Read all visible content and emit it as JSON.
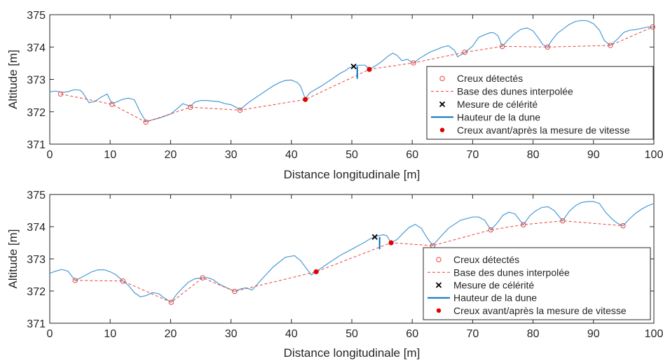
{
  "chart_data": [
    {
      "type": "line",
      "xlabel": "Distance longitudinale [m]",
      "ylabel": "Altitude [m]",
      "xlim": [
        0,
        100
      ],
      "ylim": [
        371,
        375
      ],
      "xticks": [
        0,
        10,
        20,
        30,
        40,
        50,
        60,
        70,
        80,
        90,
        100
      ],
      "yticks": [
        371,
        372,
        373,
        374,
        375
      ],
      "legend_position": "bottom-right",
      "colors": {
        "profile": "#4a9bd6",
        "troughs": "#e8433a",
        "base": "#e8433a",
        "celerity": "#000000",
        "height": "#0072bd",
        "measure_troughs": "#e00000"
      },
      "legend": [
        "Creux détectés",
        "Base des dunes interpolée",
        "Mesure de célérité",
        "Hauteur de la dune",
        "Creux avant/après la mesure de vitesse"
      ],
      "series": [
        {
          "name": "Creux détectés",
          "kind": "open-circles",
          "x": [
            1.8,
            10.3,
            15.9,
            23.3,
            31.5,
            42.3,
            52.9,
            60.2,
            68.7,
            74.9,
            82.4,
            92.8,
            99.8
          ],
          "y": [
            372.55,
            372.23,
            371.68,
            372.14,
            372.05,
            372.38,
            373.31,
            373.51,
            373.84,
            374.02,
            374.0,
            374.05,
            374.62
          ]
        },
        {
          "name": "Base des dunes interpolée",
          "kind": "dashed-line",
          "x": [
            1.8,
            10.3,
            15.9,
            23.3,
            31.5,
            42.3,
            52.9,
            60.2,
            68.7,
            74.9,
            82.4,
            92.8,
            99.8
          ],
          "y": [
            372.55,
            372.23,
            371.68,
            372.14,
            372.05,
            372.38,
            373.31,
            373.51,
            373.84,
            374.02,
            374.0,
            374.05,
            374.62
          ]
        },
        {
          "name": "Mesure de célérité",
          "kind": "cross",
          "x": [
            50.3
          ],
          "y": [
            373.4
          ]
        },
        {
          "name": "Hauteur de la dune",
          "kind": "vertical-segment",
          "x": [
            50.9,
            50.9
          ],
          "y": [
            373.4,
            373.02
          ]
        },
        {
          "name": "Creux avant/après la mesure de vitesse",
          "kind": "filled-dots",
          "x": [
            42.3,
            52.9
          ],
          "y": [
            372.38,
            373.31
          ]
        },
        {
          "name": "",
          "kind": "profile",
          "x": [
            0,
            1,
            2,
            3,
            4,
            5,
            5.5,
            6.5,
            7.5,
            8.5,
            9.5,
            10.3,
            11,
            12,
            13,
            14,
            15,
            15.9,
            17,
            18,
            19,
            20,
            21,
            22,
            23.3,
            24,
            25,
            26,
            27,
            28,
            29,
            30,
            31.5,
            33,
            35,
            37,
            38,
            39,
            40,
            41,
            41.5,
            42.3,
            43,
            45,
            47,
            48,
            49,
            49.5,
            50.2,
            50.6,
            51.2,
            52.2,
            52.9,
            54,
            55,
            56,
            56.8,
            57.5,
            58.3,
            59.2,
            60.2,
            61,
            62,
            63,
            64,
            65,
            66,
            67,
            67.5,
            68.7,
            70,
            71,
            72,
            73,
            73.5,
            74.2,
            74.9,
            76,
            77,
            78,
            79,
            80,
            81,
            81.6,
            82.4,
            83,
            84,
            85,
            86,
            87,
            88,
            89,
            90,
            91,
            91.8,
            92.8,
            94,
            95,
            96,
            97,
            98,
            99,
            99.8,
            100
          ],
          "y": [
            372.62,
            372.64,
            372.6,
            372.62,
            372.68,
            372.67,
            372.58,
            372.28,
            372.32,
            372.45,
            372.55,
            372.25,
            372.3,
            372.38,
            372.42,
            372.37,
            371.98,
            371.7,
            371.75,
            371.8,
            371.86,
            371.93,
            372.08,
            372.25,
            372.17,
            372.3,
            372.35,
            372.35,
            372.33,
            372.31,
            372.25,
            372.22,
            372.07,
            372.3,
            372.55,
            372.8,
            372.9,
            372.97,
            372.98,
            372.9,
            372.8,
            372.4,
            372.58,
            372.8,
            373.05,
            373.18,
            373.28,
            373.35,
            373.4,
            373.42,
            373.44,
            373.44,
            373.31,
            373.43,
            373.56,
            373.72,
            373.81,
            373.74,
            373.58,
            373.62,
            373.5,
            373.62,
            373.74,
            373.85,
            373.92,
            374.0,
            374.04,
            373.9,
            373.7,
            373.83,
            374.03,
            374.3,
            374.38,
            374.45,
            374.44,
            374.35,
            374.02,
            374.25,
            374.42,
            374.55,
            374.59,
            374.5,
            374.25,
            374.08,
            373.99,
            374.18,
            374.42,
            374.56,
            374.7,
            374.79,
            374.82,
            374.81,
            374.72,
            374.52,
            374.2,
            374.05,
            374.25,
            374.45,
            374.52,
            374.54,
            374.58,
            374.62,
            374.62,
            374.6
          ]
        }
      ]
    },
    {
      "type": "line",
      "xlabel": "Distance longitudinale [m]",
      "ylabel": "Altitude [m]",
      "xlim": [
        0,
        100
      ],
      "ylim": [
        371,
        375
      ],
      "xticks": [
        0,
        10,
        20,
        30,
        40,
        50,
        60,
        70,
        80,
        90,
        100
      ],
      "yticks": [
        371,
        372,
        373,
        374,
        375
      ],
      "legend_position": "bottom-right",
      "colors": {
        "profile": "#4a9bd6",
        "troughs": "#e8433a",
        "base": "#e8433a",
        "celerity": "#000000",
        "height": "#0072bd",
        "measure_troughs": "#e00000"
      },
      "legend": [
        "Creux détectés",
        "Base des dunes interpolée",
        "Mesure de célérité",
        "Hauteur de la dune",
        "Creux avant/après la mesure de vitesse"
      ],
      "series": [
        {
          "name": "Creux détectés",
          "kind": "open-circles",
          "x": [
            4.2,
            12.1,
            20.1,
            25.3,
            30.6,
            44.1,
            56.5,
            63.4,
            73.0,
            78.4,
            84.9,
            94.9
          ],
          "y": [
            372.33,
            372.31,
            371.65,
            372.41,
            371.99,
            372.6,
            373.5,
            373.41,
            373.9,
            374.06,
            374.18,
            374.03
          ]
        },
        {
          "name": "Base des dunes interpolée",
          "kind": "dashed-line",
          "x": [
            4.2,
            12.1,
            20.1,
            25.3,
            30.6,
            44.1,
            56.5,
            63.4,
            73.0,
            78.4,
            84.9,
            94.9
          ],
          "y": [
            372.33,
            372.31,
            371.65,
            372.41,
            371.99,
            372.6,
            373.5,
            373.41,
            373.9,
            374.06,
            374.18,
            374.03
          ]
        },
        {
          "name": "Mesure de célérité",
          "kind": "cross",
          "x": [
            53.8
          ],
          "y": [
            373.68
          ]
        },
        {
          "name": "Hauteur de la dune",
          "kind": "vertical-segment",
          "x": [
            54.6,
            54.6
          ],
          "y": [
            373.68,
            373.3
          ]
        },
        {
          "name": "Creux avant/après la mesure de vitesse",
          "kind": "filled-dots",
          "x": [
            44.1,
            56.5
          ],
          "y": [
            372.6,
            373.5
          ]
        },
        {
          "name": "",
          "kind": "profile",
          "x": [
            0,
            1,
            2,
            3,
            4.2,
            5,
            6,
            7,
            8,
            9,
            10,
            11,
            12.1,
            13,
            14,
            15,
            16,
            17,
            18,
            19,
            20.1,
            21,
            22,
            23,
            24,
            25.3,
            26,
            27,
            28,
            29,
            30.6,
            31.5,
            32.5,
            33.5,
            35,
            37,
            39,
            40.5,
            41.5,
            42.5,
            43.3,
            44.1,
            46,
            48,
            50,
            52,
            53,
            53.8,
            54.4,
            55.2,
            55.8,
            56.5,
            57.5,
            58.5,
            59.5,
            60.5,
            61.5,
            62.3,
            63.4,
            64.5,
            66,
            68,
            70,
            71,
            72,
            73,
            74,
            75,
            76,
            77,
            78.4,
            79.5,
            80.5,
            81.5,
            82.5,
            83.5,
            84.9,
            86,
            87,
            88,
            89,
            90,
            91,
            92,
            93,
            94,
            94.9,
            96,
            97,
            98,
            99,
            100
          ],
          "y": [
            372.55,
            372.62,
            372.67,
            372.62,
            372.33,
            372.4,
            372.5,
            372.6,
            372.66,
            372.66,
            372.6,
            372.5,
            372.31,
            372.18,
            371.95,
            371.82,
            371.86,
            371.95,
            371.92,
            371.78,
            371.65,
            371.9,
            372.1,
            372.28,
            372.38,
            372.41,
            372.42,
            372.36,
            372.22,
            372.13,
            371.99,
            372.06,
            372.1,
            372.03,
            372.35,
            372.75,
            373.05,
            373.1,
            372.95,
            372.7,
            372.5,
            372.6,
            372.85,
            373.1,
            373.3,
            373.5,
            373.62,
            373.68,
            373.72,
            373.75,
            373.72,
            373.5,
            373.6,
            373.8,
            373.98,
            374.07,
            373.95,
            373.7,
            373.41,
            373.65,
            373.95,
            374.2,
            374.3,
            374.3,
            374.2,
            373.9,
            374.1,
            374.35,
            374.45,
            374.4,
            374.06,
            374.35,
            374.5,
            374.6,
            374.62,
            374.5,
            374.18,
            374.48,
            374.65,
            374.75,
            374.78,
            374.78,
            374.72,
            374.45,
            374.25,
            374.1,
            374.03,
            374.25,
            374.42,
            374.55,
            374.65,
            374.72
          ]
        }
      ]
    }
  ]
}
